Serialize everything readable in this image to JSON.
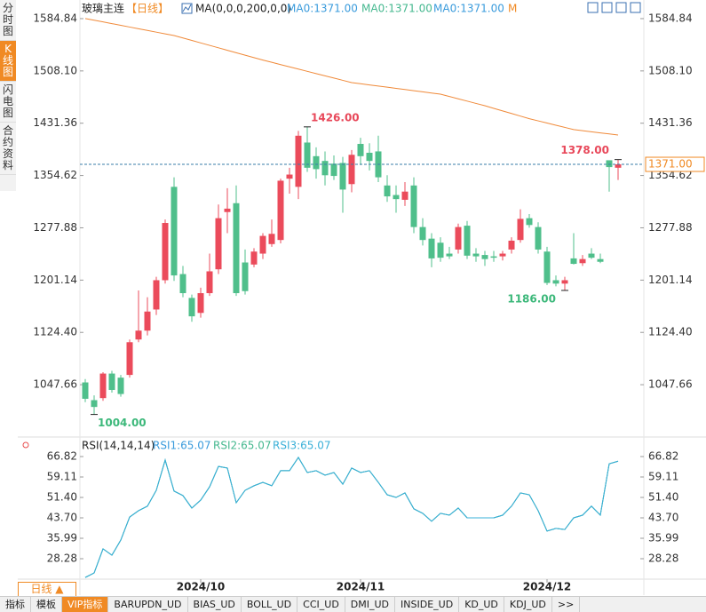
{
  "sidebar_tabs": [
    "分时图",
    "K线图",
    "闪电图",
    "合约资料"
  ],
  "header": {
    "symbol": "玻璃主连",
    "period": "【日线】",
    "ma_params": "MA(0,0,0,200,0,0)",
    "ma_values": [
      "MA0:1371.00",
      "MA0:1371.00",
      "MA0:1371.00"
    ],
    "ma_extra": "M"
  },
  "chart_data": [
    {
      "type": "candlestick",
      "categories": [
        null,
        null,
        null,
        null,
        null,
        null,
        null,
        null,
        null,
        null,
        null,
        null,
        null,
        "2024/10",
        null,
        null,
        null,
        null,
        null,
        null,
        null,
        null,
        null,
        null,
        null,
        null,
        null,
        null,
        null,
        null,
        null,
        "2024/11",
        null,
        null,
        null,
        null,
        null,
        null,
        null,
        null,
        null,
        null,
        null,
        null,
        null,
        null,
        null,
        null,
        null,
        null,
        null,
        null,
        "2024/12",
        null,
        null,
        null,
        null,
        null,
        null,
        null,
        null
      ],
      "open": [
        1051,
        1025,
        1028,
        1064,
        1058,
        1062,
        1114,
        1127,
        1158,
        1201,
        1338,
        1210,
        1175,
        1153,
        1182,
        1217,
        1301,
        1314,
        1227,
        1224,
        1240,
        1254,
        1260,
        1350,
        1338,
        1403,
        1383,
        1376,
        1372,
        1373,
        1342,
        1401,
        1388,
        1390,
        1340,
        1326,
        1319,
        1340,
        1279,
        1262,
        1256,
        1240,
        1246,
        1281,
        1240,
        1238,
        1236,
        1236,
        1246,
        1260,
        1292,
        1279,
        1243,
        1201,
        1196,
        1233,
        1226,
        1240,
        1232,
        1377,
        1366
      ],
      "high": [
        1056,
        1032,
        1066,
        1068,
        1062,
        1114,
        1186,
        1176,
        1206,
        1290,
        1352,
        1222,
        1180,
        1190,
        1240,
        1312,
        1336,
        1340,
        1246,
        1248,
        1270,
        1290,
        1350,
        1366,
        1420,
        1426,
        1396,
        1390,
        1384,
        1382,
        1392,
        1410,
        1402,
        1413,
        1355,
        1340,
        1345,
        1352,
        1292,
        1270,
        1264,
        1250,
        1284,
        1288,
        1248,
        1244,
        1244,
        1244,
        1264,
        1305,
        1298,
        1286,
        1250,
        1208,
        1206,
        1270,
        1238,
        1248,
        1240,
        1376,
        1378
      ],
      "low": [
        1022,
        1004,
        1024,
        1036,
        1030,
        1058,
        1110,
        1120,
        1150,
        1196,
        1200,
        1176,
        1140,
        1146,
        1178,
        1210,
        1270,
        1178,
        1180,
        1220,
        1232,
        1250,
        1255,
        1328,
        1320,
        1360,
        1350,
        1340,
        1348,
        1300,
        1330,
        1370,
        1362,
        1345,
        1316,
        1300,
        1310,
        1270,
        1252,
        1220,
        1228,
        1232,
        1240,
        1232,
        1228,
        1222,
        1228,
        1230,
        1240,
        1256,
        1278,
        1240,
        1194,
        1192,
        1186,
        1224,
        1222,
        1232,
        1226,
        1331,
        1348
      ],
      "close": [
        1027,
        1015,
        1064,
        1040,
        1034,
        1110,
        1127,
        1155,
        1201,
        1285,
        1208,
        1182,
        1148,
        1182,
        1214,
        1292,
        1306,
        1182,
        1185,
        1243,
        1266,
        1269,
        1347,
        1356,
        1413,
        1366,
        1364,
        1355,
        1354,
        1334,
        1385,
        1383,
        1376,
        1352,
        1324,
        1320,
        1331,
        1279,
        1260,
        1233,
        1234,
        1236,
        1279,
        1237,
        1236,
        1232,
        1234,
        1240,
        1259,
        1291,
        1282,
        1246,
        1197,
        1196,
        1201,
        1225,
        1232,
        1234,
        1228,
        1367,
        1371
      ],
      "up_color": "#eb4b5b",
      "down_color": "#4fbf8b",
      "ma": {
        "color": "#f08a3a",
        "values": [
          1585,
          1582.5,
          1580,
          1577.5,
          1575,
          1572.5,
          1570,
          1567.5,
          1565,
          1562.5,
          1560,
          1556.4,
          1552.8,
          1549.2,
          1545.6,
          1542,
          1538.4,
          1534.8,
          1531.2,
          1527.6,
          1524,
          1520.7,
          1517.4,
          1514.1,
          1510.8,
          1507.5,
          1504.2,
          1500.9,
          1497.6,
          1494.3,
          1491,
          1489.3,
          1487.6,
          1485.9,
          1484.2,
          1482.5,
          1480.8,
          1479.1,
          1477.4,
          1475.7,
          1474,
          1470.6,
          1467.2,
          1463.8,
          1460.4,
          1457,
          1453.2,
          1449.4,
          1445.6,
          1441.8,
          1438,
          1434.8,
          1431.6,
          1428.4,
          1425.2,
          1422,
          1420.4,
          1418.8,
          1417.2,
          1415.6,
          1414
        ]
      },
      "ylim": [
        973.5,
        1588.7
      ],
      "yticks": [
        1584.84,
        {
          "value": 1508.1,
          "label": "1508.10"
        },
        1431.36,
        1354.62,
        1277.88,
        1201.14,
        {
          "value": 1124.4,
          "label": "1124.40"
        },
        1047.66
      ],
      "annotations": [
        {
          "index": 25,
          "value": 1426,
          "label": "1426.00"
        },
        {
          "index": 60,
          "value": 1378,
          "label": "1378.00"
        },
        {
          "index": 1,
          "value": 1004,
          "label": "1004.00"
        },
        {
          "index": 54,
          "value": 1186,
          "label": "1186.00"
        }
      ],
      "last_price": {
        "value": 1371,
        "label": "1371.00"
      }
    },
    {
      "type": "line",
      "title": "RSI(14,14,14)",
      "series": [
        {
          "name": "RSI1:65.07",
          "color": "#3a9bdc",
          "values": [
            21.2,
            22.9,
            32.0,
            29.6,
            35.3,
            44.0,
            46.4,
            48.1,
            54.1,
            65.5,
            53.8,
            52.1,
            47.4,
            50.4,
            55.4,
            63.1,
            62.5,
            49.4,
            54.1,
            55.8,
            57.1,
            55.8,
            61.5,
            61.5,
            66.5,
            60.8,
            61.5,
            59.8,
            60.8,
            56.4,
            62.5,
            60.8,
            61.5,
            57.1,
            52.4,
            51.4,
            53.1,
            47.1,
            45.4,
            42.4,
            45.4,
            44.7,
            47.4,
            43.7,
            43.7,
            43.7,
            43.7,
            44.7,
            48.1,
            53.1,
            52.4,
            46.4,
            38.7,
            39.7,
            39.3,
            43.7,
            44.7,
            48.1,
            44.7,
            64.1,
            65.07
          ]
        },
        {
          "name": "RSI2:65.07",
          "color": "#45b88f",
          "values": [
            21.2,
            22.9,
            32.0,
            29.6,
            35.3,
            44.0,
            46.4,
            48.1,
            54.1,
            65.5,
            53.8,
            52.1,
            47.4,
            50.4,
            55.4,
            63.1,
            62.5,
            49.4,
            54.1,
            55.8,
            57.1,
            55.8,
            61.5,
            61.5,
            66.5,
            60.8,
            61.5,
            59.8,
            60.8,
            56.4,
            62.5,
            60.8,
            61.5,
            57.1,
            52.4,
            51.4,
            53.1,
            47.1,
            45.4,
            42.4,
            45.4,
            44.7,
            47.4,
            43.7,
            43.7,
            43.7,
            43.7,
            44.7,
            48.1,
            53.1,
            52.4,
            46.4,
            38.7,
            39.7,
            39.3,
            43.7,
            44.7,
            48.1,
            44.7,
            64.1,
            65.07
          ]
        },
        {
          "name": "RSI3:65.07",
          "color": "#3ab0d8",
          "values": [
            21.2,
            22.9,
            32.0,
            29.6,
            35.3,
            44.0,
            46.4,
            48.1,
            54.1,
            65.5,
            53.8,
            52.1,
            47.4,
            50.4,
            55.4,
            63.1,
            62.5,
            49.4,
            54.1,
            55.8,
            57.1,
            55.8,
            61.5,
            61.5,
            66.5,
            60.8,
            61.5,
            59.8,
            60.8,
            56.4,
            62.5,
            60.8,
            61.5,
            57.1,
            52.4,
            51.4,
            53.1,
            47.1,
            45.4,
            42.4,
            45.4,
            44.7,
            47.4,
            43.7,
            43.7,
            43.7,
            43.7,
            44.7,
            48.1,
            53.1,
            52.4,
            46.4,
            38.7,
            39.7,
            39.3,
            43.7,
            44.7,
            48.1,
            44.7,
            64.1,
            65.07
          ]
        }
      ],
      "ylim": [
        20.57,
        69.84
      ],
      "yticks": [
        66.82,
        59.11,
        {
          "value": 51.4,
          "label": "51.40"
        },
        {
          "value": 43.7,
          "label": "43.70"
        },
        35.99,
        28.28
      ]
    }
  ],
  "footer": {
    "period": "日线 ▲",
    "tabs": [
      "指标",
      "模板",
      "VIP指标",
      "BARUPDN_UD",
      "BIAS_UD",
      "BOLL_UD",
      "CCI_UD",
      "DMI_UD",
      "INSIDE_UD",
      "KD_UD",
      "KDJ_UD",
      ">>"
    ]
  }
}
